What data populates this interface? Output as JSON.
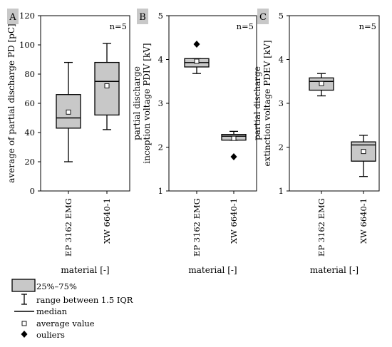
{
  "chart_data": [
    {
      "type": "boxplot",
      "panel_label": "A",
      "n_label": "n=5",
      "ylabel": "average of partial discharge PD [pC]",
      "xlabel": "material [-]",
      "ylim": [
        0,
        120
      ],
      "yticks": [
        "0",
        "20",
        "40",
        "60",
        "80",
        "100",
        "120"
      ],
      "categories": [
        "EP 3162 EMG",
        "XW 6640-1"
      ],
      "boxes": [
        {
          "q1": 43,
          "median": 50,
          "q3": 66,
          "whisker_low": 20,
          "whisker_high": 88,
          "mean": 54,
          "outliers": []
        },
        {
          "q1": 52,
          "median": 75,
          "q3": 88,
          "whisker_low": 42,
          "whisker_high": 101,
          "mean": 72,
          "outliers": []
        }
      ]
    },
    {
      "type": "boxplot",
      "panel_label": "B",
      "n_label": "n=5",
      "ylabel": [
        "partial discharge",
        "inception voltage PDIV [kV]"
      ],
      "xlabel": "material [-]",
      "ylim": [
        1,
        5
      ],
      "yticks": [
        "1",
        "2",
        "3",
        "4",
        "5"
      ],
      "categories": [
        "EP 3162 EMG",
        "XW 6640-1"
      ],
      "boxes": [
        {
          "q1": 3.83,
          "median": 3.93,
          "q3": 4.02,
          "whisker_low": 3.68,
          "whisker_high": 4.02,
          "mean": 3.96,
          "outliers": [
            4.35
          ]
        },
        {
          "q1": 2.16,
          "median": 2.25,
          "q3": 2.29,
          "whisker_low": 2.16,
          "whisker_high": 2.36,
          "mean": 2.2,
          "outliers": [
            1.78
          ]
        }
      ]
    },
    {
      "type": "boxplot",
      "panel_label": "C",
      "n_label": "n=5",
      "ylabel": [
        "partial discharge",
        "extinction voltage PDEV [kV]"
      ],
      "xlabel": "material [-]",
      "ylim": [
        1,
        5
      ],
      "yticks": [
        "1",
        "2",
        "3",
        "4",
        "5"
      ],
      "categories": [
        "EP 3162 EMG",
        "XW 6640-1"
      ],
      "boxes": [
        {
          "q1": 3.3,
          "median": 3.5,
          "q3": 3.58,
          "whisker_low": 3.17,
          "whisker_high": 3.68,
          "mean": 3.45,
          "outliers": []
        },
        {
          "q1": 1.68,
          "median": 2.05,
          "q3": 2.12,
          "whisker_low": 1.33,
          "whisker_high": 2.27,
          "mean": 1.9,
          "outliers": []
        }
      ]
    }
  ],
  "legend": {
    "box": "25%–75%",
    "whisker": "range between 1.5 IQR",
    "median": "median",
    "mean": "average value",
    "outliers": "ouliers"
  },
  "colors": {
    "box_fill": "#c8c8c8",
    "panel_label_bg": "#c8c8c8",
    "stroke": "#000000"
  }
}
